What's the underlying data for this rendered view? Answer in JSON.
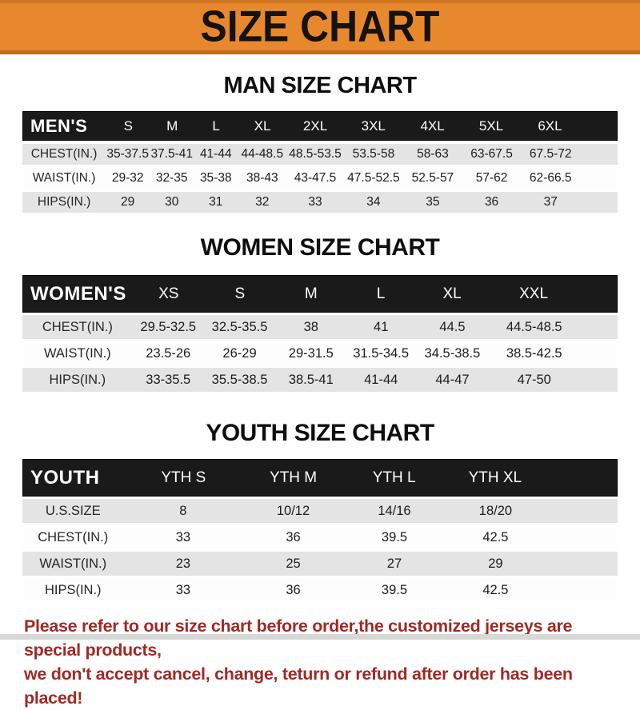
{
  "banner": {
    "title": "SIZE CHART"
  },
  "colors": {
    "banner_orange": "#e8882d",
    "header_bar_black": "#1a1a1a",
    "row_shade_gray": "#e4e4e4",
    "footer_red": "#9e2a25"
  },
  "sections": [
    {
      "name": "mens",
      "title": "MAN SIZE CHART",
      "header": {
        "label": "MEN'S",
        "columns": [
          "S",
          "M",
          "L",
          "XL",
          "2XL",
          "3XL",
          "4XL",
          "5XL",
          "6XL"
        ]
      },
      "rows": [
        {
          "label": "CHEST(IN.)",
          "values": [
            "35-37.5",
            "37.5-41",
            "41-44",
            "44-48.5",
            "48.5-53.5",
            "53.5-58",
            "58-63",
            "63-67.5",
            "67.5-72"
          ]
        },
        {
          "label": "WAIST(IN.)",
          "values": [
            "29-32",
            "32-35",
            "35-38",
            "38-43",
            "43-47.5",
            "47.5-52.5",
            "52.5-57",
            "57-62",
            "62-66.5"
          ]
        },
        {
          "label": "HIPS(IN.)",
          "values": [
            "29",
            "30",
            "31",
            "32",
            "33",
            "34",
            "35",
            "36",
            "37"
          ]
        }
      ]
    },
    {
      "name": "womens",
      "title": "WOMEN SIZE CHART",
      "header": {
        "label": "WOMEN'S",
        "columns": [
          "XS",
          "S",
          "M",
          "L",
          "XL",
          "XXL"
        ]
      },
      "rows": [
        {
          "label": "CHEST(IN.)",
          "values": [
            "29.5-32.5",
            "32.5-35.5",
            "38",
            "41",
            "44.5",
            "44.5-48.5"
          ]
        },
        {
          "label": "WAIST(IN.)",
          "values": [
            "23.5-26",
            "26-29",
            "29-31.5",
            "31.5-34.5",
            "34.5-38.5",
            "38.5-42.5"
          ]
        },
        {
          "label": "HIPS(IN.)",
          "values": [
            "33-35.5",
            "35.5-38.5",
            "38.5-41",
            "41-44",
            "44-47",
            "47-50"
          ]
        }
      ]
    },
    {
      "name": "youth",
      "title": "YOUTH SIZE CHART",
      "header": {
        "label": "YOUTH",
        "columns": [
          "YTH S",
          "YTH M",
          "YTH L",
          "YTH XL"
        ]
      },
      "rows": [
        {
          "label": "U.S.SIZE",
          "values": [
            "8",
            "10/12",
            "14/16",
            "18/20"
          ]
        },
        {
          "label": "CHEST(IN.)",
          "values": [
            "33",
            "36",
            "39.5",
            "42.5"
          ]
        },
        {
          "label": "WAIST(IN.)",
          "values": [
            "23",
            "25",
            "27",
            "29"
          ]
        },
        {
          "label": "HIPS(IN.)",
          "values": [
            "33",
            "36",
            "39.5",
            "42.5"
          ]
        }
      ]
    }
  ],
  "footer": {
    "line1": "Please refer to our size chart before order,the customized jerseys are special products,",
    "line2": "we don't accept cancel, change, teturn or refund after order has been placed!"
  }
}
